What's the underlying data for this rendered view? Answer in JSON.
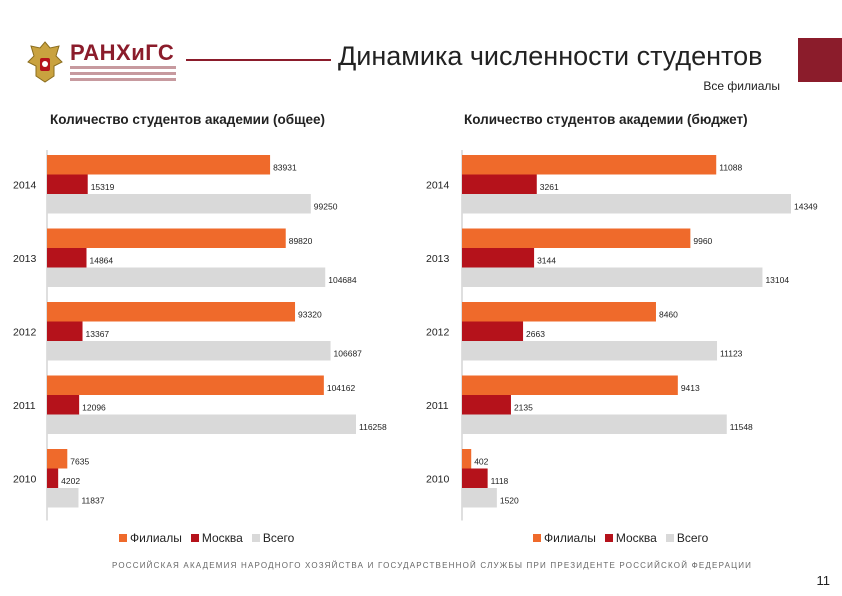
{
  "header": {
    "logo_text": "РАНХиГС",
    "title": "Динамика численности студентов",
    "subtitle": "Все филиалы"
  },
  "colors": {
    "Филиалы": "#ef6a2b",
    "Москва": "#b5121b",
    "Всего": "#d9d9d9",
    "accent": "#8b1c2b"
  },
  "chart_data": [
    {
      "type": "bar",
      "orientation": "horizontal",
      "title": "Количество студентов академии (общее)",
      "categories": [
        "2014",
        "2013",
        "2012",
        "2011",
        "2010"
      ],
      "series": [
        {
          "name": "Филиалы",
          "values": [
            83931,
            89820,
            93320,
            104162,
            7635
          ]
        },
        {
          "name": "Москва",
          "values": [
            15319,
            14864,
            13367,
            12096,
            4202
          ]
        },
        {
          "name": "Всего",
          "values": [
            99250,
            104684,
            106687,
            116258,
            11837
          ]
        }
      ],
      "xlim": [
        0,
        116258
      ],
      "legend": "bottom"
    },
    {
      "type": "bar",
      "orientation": "horizontal",
      "title": "Количество студентов академии (бюджет)",
      "categories": [
        "2014",
        "2013",
        "2012",
        "2011",
        "2010"
      ],
      "series": [
        {
          "name": "Филиалы",
          "values": [
            11088,
            9960,
            8460,
            9413,
            402
          ]
        },
        {
          "name": "Москва",
          "values": [
            3261,
            3144,
            2663,
            2135,
            1118
          ]
        },
        {
          "name": "Всего",
          "values": [
            14349,
            13104,
            11123,
            11548,
            1520
          ]
        }
      ],
      "xlim": [
        0,
        14349
      ],
      "legend": "bottom"
    }
  ],
  "footer": {
    "text": "РОССИЙСКАЯ АКАДЕМИЯ НАРОДНОГО ХОЗЯЙСТВА И ГОСУДАРСТВЕННОЙ СЛУЖБЫ ПРИ ПРЕЗИДЕНТЕ РОССИЙСКОЙ ФЕДЕРАЦИИ",
    "page_number": "11"
  }
}
